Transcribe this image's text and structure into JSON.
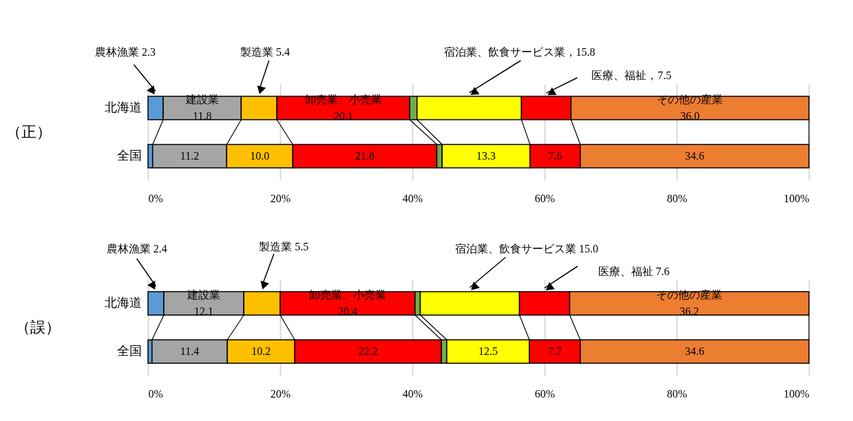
{
  "chart_data": [
    {
      "type": "bar",
      "title": "（正）",
      "orientation": "horizontal",
      "stacked": true,
      "categories": [
        "北海道",
        "全国"
      ],
      "xlim": [
        0,
        100
      ],
      "xticks": [
        {
          "value": 0,
          "label": "0%"
        },
        {
          "value": 20,
          "label": "20%"
        },
        {
          "value": 40,
          "label": "40%"
        },
        {
          "value": 60,
          "label": "60%"
        },
        {
          "value": 80,
          "label": "80%"
        },
        {
          "value": 100,
          "label": "100%"
        }
      ],
      "grid": "x",
      "series": [
        {
          "color": "#5b9bd5",
          "values": [
            2.3,
            0.7
          ],
          "value_labels": [
            null,
            null
          ]
        },
        {
          "color": "#a5a5a5",
          "values": [
            11.8,
            11.2
          ],
          "value_labels": [
            null,
            "11.2"
          ]
        },
        {
          "color": "#ffc000",
          "values": [
            5.4,
            10.0
          ],
          "value_labels": [
            null,
            "10.0"
          ]
        },
        {
          "color": "#ff0000",
          "values": [
            20.1,
            21.8
          ],
          "value_labels": [
            null,
            "21.8"
          ]
        },
        {
          "color": "#70ad47",
          "values": [
            1.1,
            0.8
          ],
          "value_labels": [
            null,
            null
          ]
        },
        {
          "color": "#ffff00",
          "values": [
            15.8,
            13.3
          ],
          "value_labels": [
            null,
            "13.3"
          ]
        },
        {
          "color": "#ff0000",
          "values": [
            7.5,
            7.6
          ],
          "value_labels": [
            null,
            "7.6"
          ]
        },
        {
          "color": "#ed7d31",
          "values": [
            36.0,
            34.6
          ],
          "value_labels": [
            null,
            "34.6"
          ]
        }
      ],
      "annotations": [
        "農林漁業 2.3",
        "建設業\n11.8",
        "製造業 5.4",
        "卸売業、小売業\n20.1",
        "宿泊業、飲食サービス業，15.8",
        "医療、福祉，7.5",
        "その他の産業\n36.0"
      ]
    },
    {
      "type": "bar",
      "title": "（誤）",
      "orientation": "horizontal",
      "stacked": true,
      "categories": [
        "北海道",
        "全国"
      ],
      "xlim": [
        0,
        100
      ],
      "xticks": [
        {
          "value": 0,
          "label": "0%"
        },
        {
          "value": 20,
          "label": "20%"
        },
        {
          "value": 40,
          "label": "40%"
        },
        {
          "value": 60,
          "label": "60%"
        },
        {
          "value": 80,
          "label": "80%"
        },
        {
          "value": 100,
          "label": "100%"
        }
      ],
      "grid": "x",
      "series": [
        {
          "color": "#5b9bd5",
          "values": [
            2.4,
            0.6
          ],
          "value_labels": [
            null,
            null
          ]
        },
        {
          "color": "#a5a5a5",
          "values": [
            12.1,
            11.4
          ],
          "value_labels": [
            null,
            "11.4"
          ]
        },
        {
          "color": "#ffc000",
          "values": [
            5.5,
            10.2
          ],
          "value_labels": [
            null,
            "10.2"
          ]
        },
        {
          "color": "#ff0000",
          "values": [
            20.4,
            22.2
          ],
          "value_labels": [
            null,
            "22.2"
          ]
        },
        {
          "color": "#70ad47",
          "values": [
            0.8,
            0.8
          ],
          "value_labels": [
            null,
            null
          ]
        },
        {
          "color": "#ffff00",
          "values": [
            15.0,
            12.5
          ],
          "value_labels": [
            null,
            "12.5"
          ]
        },
        {
          "color": "#ff0000",
          "values": [
            7.6,
            7.7
          ],
          "value_labels": [
            null,
            "7.7"
          ]
        },
        {
          "color": "#ed7d31",
          "values": [
            36.2,
            34.6
          ],
          "value_labels": [
            null,
            "34.6"
          ]
        }
      ],
      "annotations": [
        "農林漁業 2.4",
        "建設業\n12.1",
        "製造業 5.5",
        "卸売業、小売業\n20.4",
        "宿泊業、飲食サービス業 15.0",
        "医療、福祉 7.6",
        "その他の産業\n36.2"
      ]
    }
  ]
}
